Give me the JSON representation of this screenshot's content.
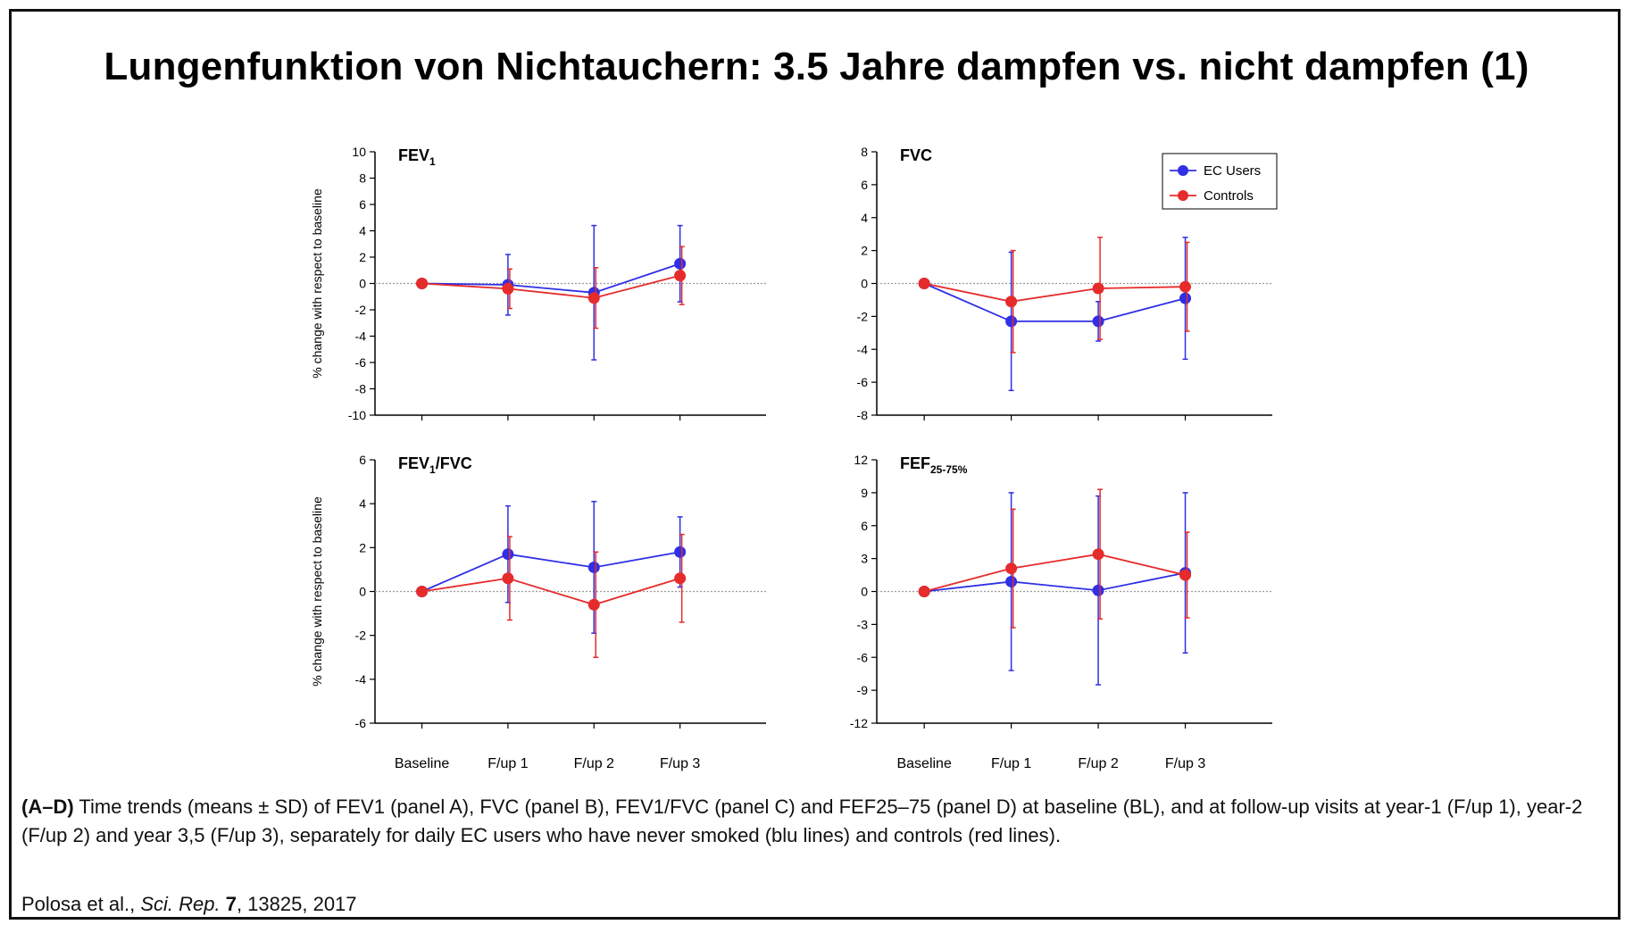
{
  "title": "Lungenfunktion von Nichtauchern: 3.5 Jahre dampfen vs. nicht dampfen (1)",
  "ylabel_left": "% change with respect to baseline",
  "caption": {
    "panels": "A–D",
    "text": " Time trends (means ± SD) of FEV1 (panel A), FVC (panel B), FEV1/FVC (panel C) and FEF25–75 (panel D) at baseline (BL), and at follow-up visits at year-1 (F/up 1), year-2 (F/up 2) and year 3,5 (F/up 3), separately for daily EC users who have never smoked (blu lines) and controls (red lines)."
  },
  "citation": {
    "authors": "Polosa et al., ",
    "journal": "Sci. Rep.",
    "volume": "7",
    "rest": ", 13825, 2017"
  },
  "colors": {
    "ec": "#2f2fe6",
    "controls": "#e62b2b",
    "axis": "#000000",
    "zero_line": "#9a9a9a"
  },
  "legend": {
    "placement": "top-right of FVC panel",
    "items": [
      "EC Users",
      "Controls"
    ]
  },
  "chart_data": [
    {
      "type": "line",
      "panel": "A",
      "title_main": "FEV",
      "title_sub": "1",
      "title_suffix": "",
      "categories": [
        "Baseline",
        "F/up 1",
        "F/up 2",
        "F/up 3"
      ],
      "ylim": [
        -10,
        10
      ],
      "yticks": [
        10,
        8,
        6,
        4,
        2,
        0,
        -2,
        -4,
        -6,
        -8,
        -10
      ],
      "ylabel": "% change with respect to baseline",
      "show_xticklabels": false,
      "series": [
        {
          "name": "EC Users",
          "values": [
            0,
            -0.1,
            -0.7,
            1.5
          ],
          "err": [
            0,
            2.3,
            5.1,
            2.9
          ]
        },
        {
          "name": "Controls",
          "values": [
            0,
            -0.4,
            -1.1,
            0.6
          ],
          "err": [
            0,
            1.5,
            2.3,
            2.2
          ]
        }
      ]
    },
    {
      "type": "line",
      "panel": "B",
      "title_main": "FVC",
      "title_sub": "",
      "title_suffix": "",
      "categories": [
        "Baseline",
        "F/up 1",
        "F/up 2",
        "F/up 3"
      ],
      "ylim": [
        -8,
        8
      ],
      "yticks": [
        8,
        6,
        4,
        2,
        0,
        -2,
        -4,
        -6,
        -8
      ],
      "ylabel": "",
      "show_xticklabels": false,
      "series": [
        {
          "name": "EC Users",
          "values": [
            0,
            -2.3,
            -2.3,
            -0.9
          ],
          "err": [
            0,
            4.2,
            1.2,
            3.7
          ]
        },
        {
          "name": "Controls",
          "values": [
            0,
            -1.1,
            -0.3,
            -0.2
          ],
          "err": [
            0,
            3.1,
            3.1,
            2.7
          ]
        }
      ]
    },
    {
      "type": "line",
      "panel": "C",
      "title_main": "FEV",
      "title_sub": "1",
      "title_suffix": "/FVC",
      "categories": [
        "Baseline",
        "F/up 1",
        "F/up 2",
        "F/up 3"
      ],
      "ylim": [
        -6,
        6
      ],
      "yticks": [
        6,
        4,
        2,
        0,
        -2,
        -4,
        -6
      ],
      "ylabel": "% change with respect to baseline",
      "show_xticklabels": true,
      "series": [
        {
          "name": "EC Users",
          "values": [
            0,
            1.7,
            1.1,
            1.8
          ],
          "err": [
            0,
            2.2,
            3.0,
            1.6
          ]
        },
        {
          "name": "Controls",
          "values": [
            0,
            0.6,
            -0.6,
            0.6
          ],
          "err": [
            0,
            1.9,
            2.4,
            2.0
          ]
        }
      ]
    },
    {
      "type": "line",
      "panel": "D",
      "title_main": "FEF",
      "title_sub": "25-75%",
      "title_suffix": "",
      "categories": [
        "Baseline",
        "F/up 1",
        "F/up 2",
        "F/up 3"
      ],
      "ylim": [
        -12,
        12
      ],
      "yticks": [
        12,
        9,
        6,
        3,
        0,
        -3,
        -6,
        -9,
        -12
      ],
      "ylabel": "",
      "show_xticklabels": true,
      "series": [
        {
          "name": "EC Users",
          "values": [
            0,
            0.9,
            0.1,
            1.7
          ],
          "err": [
            0,
            8.1,
            8.6,
            7.3
          ]
        },
        {
          "name": "Controls",
          "values": [
            0,
            2.1,
            3.4,
            1.5
          ],
          "err": [
            0,
            5.4,
            5.9,
            3.9
          ]
        }
      ]
    }
  ]
}
